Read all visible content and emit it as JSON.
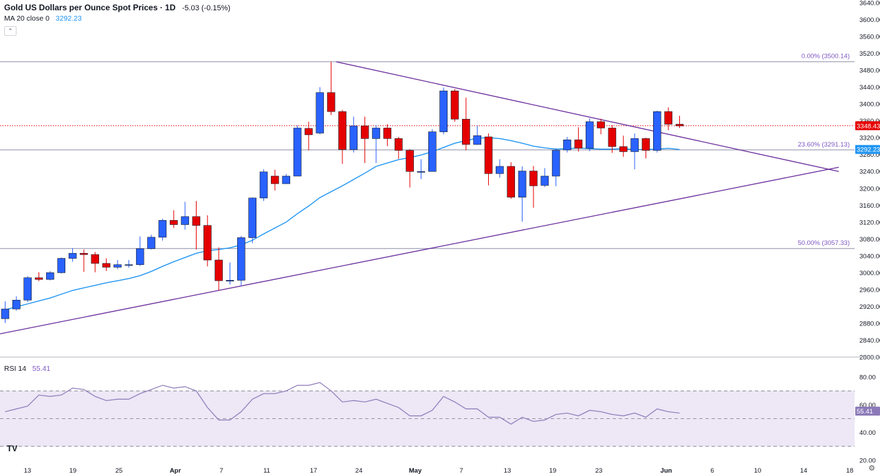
{
  "header": {
    "title": "Gold US Dollars per Ounce Spot Prices · 1D",
    "change": "-5.03 (-0.15%)",
    "ma_label": "MA 20 close 0",
    "ma_value": "3292.23",
    "rsi_label": "RSI 14",
    "rsi_value": "55.41",
    "logo": "TV"
  },
  "colors": {
    "up": "#2962ff",
    "down": "#e50000",
    "ma": "#2196f3",
    "trend": "#6a2c9c",
    "fib": "#7e57c2",
    "rsi": "#8c7ab8",
    "rsi_band": "#ede7f6",
    "price_tag": "#e50000"
  },
  "chart_data": [
    {
      "type": "candlestick",
      "title": "Gold US Dollars per Ounce Spot Prices · 1D",
      "ylim": [
        2800,
        3640
      ],
      "y_ticks": [
        "3640.00",
        "3600.00",
        "3560.00",
        "3520.00",
        "3480.00",
        "3440.00",
        "3400.00",
        "3360.00",
        "3320.00",
        "3280.00",
        "3240.00",
        "3200.00",
        "3160.00",
        "3120.00",
        "3080.00",
        "3040.00",
        "3000.00",
        "2960.00",
        "2920.00",
        "2880.00",
        "2840.00",
        "2800.00"
      ],
      "x_ticks": [
        "13",
        "19",
        "25",
        "Apr",
        "7",
        "11",
        "17",
        "24",
        "May",
        "7",
        "13",
        "19",
        "23",
        "Jun",
        "6",
        "10",
        "14",
        "18"
      ],
      "candles": [
        {
          "d": "Mar 12",
          "o": 2891,
          "h": 2932,
          "l": 2881,
          "c": 2914
        },
        {
          "d": "Mar 13",
          "o": 2914,
          "h": 2944,
          "l": 2910,
          "c": 2935
        },
        {
          "d": "Mar 14",
          "o": 2935,
          "h": 2992,
          "l": 2930,
          "c": 2988
        },
        {
          "d": "Mar 17",
          "o": 2988,
          "h": 3001,
          "l": 2980,
          "c": 2984
        },
        {
          "d": "Mar 18",
          "o": 2984,
          "h": 3004,
          "l": 2982,
          "c": 3000
        },
        {
          "d": "Mar 19",
          "o": 3000,
          "h": 3036,
          "l": 2998,
          "c": 3034
        },
        {
          "d": "Mar 20",
          "o": 3034,
          "h": 3058,
          "l": 3026,
          "c": 3046
        },
        {
          "d": "Mar 21",
          "o": 3046,
          "h": 3055,
          "l": 3002,
          "c": 3043
        },
        {
          "d": "Mar 24",
          "o": 3043,
          "h": 3049,
          "l": 3001,
          "c": 3022
        },
        {
          "d": "Mar 25",
          "o": 3022,
          "h": 3034,
          "l": 3004,
          "c": 3013
        },
        {
          "d": "Mar 26",
          "o": 3013,
          "h": 3030,
          "l": 3008,
          "c": 3019
        },
        {
          "d": "Mar 27",
          "o": 3019,
          "h": 3030,
          "l": 3012,
          "c": 3019
        },
        {
          "d": "Mar 28",
          "o": 3019,
          "h": 3086,
          "l": 3016,
          "c": 3057
        },
        {
          "d": "Mar 31",
          "o": 3057,
          "h": 3090,
          "l": 3055,
          "c": 3084
        },
        {
          "d": "Apr 1",
          "o": 3084,
          "h": 3128,
          "l": 3076,
          "c": 3124
        },
        {
          "d": "Apr 2",
          "o": 3124,
          "h": 3148,
          "l": 3106,
          "c": 3114
        },
        {
          "d": "Apr 3",
          "o": 3114,
          "h": 3168,
          "l": 3102,
          "c": 3133
        },
        {
          "d": "Apr 4",
          "o": 3133,
          "h": 3170,
          "l": 3055,
          "c": 3112
        },
        {
          "d": "Apr 7",
          "o": 3112,
          "h": 3136,
          "l": 3015,
          "c": 3030
        },
        {
          "d": "Apr 8",
          "o": 3030,
          "h": 3060,
          "l": 2958,
          "c": 2981
        },
        {
          "d": "Apr 9",
          "o": 2982,
          "h": 3024,
          "l": 2972,
          "c": 2982
        },
        {
          "d": "Apr 10",
          "o": 2982,
          "h": 3087,
          "l": 2970,
          "c": 3083
        },
        {
          "d": "Apr 11",
          "o": 3083,
          "h": 3179,
          "l": 3070,
          "c": 3177
        },
        {
          "d": "Apr 14",
          "o": 3177,
          "h": 3245,
          "l": 3170,
          "c": 3239
        },
        {
          "d": "Apr 15",
          "o": 3229,
          "h": 3244,
          "l": 3195,
          "c": 3211
        },
        {
          "d": "Apr 16",
          "o": 3211,
          "h": 3234,
          "l": 3211,
          "c": 3229
        },
        {
          "d": "Apr 17",
          "o": 3229,
          "h": 3349,
          "l": 3229,
          "c": 3343
        },
        {
          "d": "Apr 18",
          "o": 3342,
          "h": 3358,
          "l": 3290,
          "c": 3327
        },
        {
          "d": "Apr 21",
          "o": 3331,
          "h": 3440,
          "l": 3328,
          "c": 3427
        },
        {
          "d": "Apr 22",
          "o": 3427,
          "h": 3500,
          "l": 3374,
          "c": 3382
        },
        {
          "d": "Apr 23",
          "o": 3382,
          "h": 3386,
          "l": 3258,
          "c": 3292
        },
        {
          "d": "Apr 24",
          "o": 3292,
          "h": 3370,
          "l": 3285,
          "c": 3348
        },
        {
          "d": "Apr 25",
          "o": 3348,
          "h": 3370,
          "l": 3260,
          "c": 3318
        },
        {
          "d": "Apr 28",
          "o": 3318,
          "h": 3350,
          "l": 3260,
          "c": 3343
        },
        {
          "d": "Apr 29",
          "o": 3343,
          "h": 3352,
          "l": 3300,
          "c": 3318
        },
        {
          "d": "Apr 30",
          "o": 3318,
          "h": 3322,
          "l": 3270,
          "c": 3290
        },
        {
          "d": "May 1",
          "o": 3290,
          "h": 3293,
          "l": 3202,
          "c": 3240
        },
        {
          "d": "May 2",
          "o": 3240,
          "h": 3269,
          "l": 3222,
          "c": 3240
        },
        {
          "d": "May 5",
          "o": 3240,
          "h": 3340,
          "l": 3240,
          "c": 3334
        },
        {
          "d": "May 6",
          "o": 3334,
          "h": 3439,
          "l": 3328,
          "c": 3431
        },
        {
          "d": "May 7",
          "o": 3431,
          "h": 3435,
          "l": 3358,
          "c": 3364
        },
        {
          "d": "May 8",
          "o": 3364,
          "h": 3415,
          "l": 3290,
          "c": 3304
        },
        {
          "d": "May 9",
          "o": 3304,
          "h": 3349,
          "l": 3303,
          "c": 3325
        },
        {
          "d": "May 12",
          "o": 3322,
          "h": 3330,
          "l": 3207,
          "c": 3235
        },
        {
          "d": "May 13",
          "o": 3235,
          "h": 3269,
          "l": 3225,
          "c": 3252
        },
        {
          "d": "May 14",
          "o": 3252,
          "h": 3262,
          "l": 3175,
          "c": 3179
        },
        {
          "d": "May 15",
          "o": 3179,
          "h": 3252,
          "l": 3121,
          "c": 3241
        },
        {
          "d": "May 16",
          "o": 3241,
          "h": 3253,
          "l": 3154,
          "c": 3206
        },
        {
          "d": "May 19",
          "o": 3207,
          "h": 3248,
          "l": 3203,
          "c": 3229
        },
        {
          "d": "May 20",
          "o": 3229,
          "h": 3295,
          "l": 3205,
          "c": 3290
        },
        {
          "d": "May 21",
          "o": 3291,
          "h": 3322,
          "l": 3285,
          "c": 3315
        },
        {
          "d": "May 22",
          "o": 3315,
          "h": 3345,
          "l": 3287,
          "c": 3295
        },
        {
          "d": "May 23",
          "o": 3295,
          "h": 3366,
          "l": 3288,
          "c": 3358
        },
        {
          "d": "May 26",
          "o": 3358,
          "h": 3365,
          "l": 3328,
          "c": 3343
        },
        {
          "d": "May 27",
          "o": 3343,
          "h": 3350,
          "l": 3284,
          "c": 3299
        },
        {
          "d": "May 28",
          "o": 3299,
          "h": 3325,
          "l": 3275,
          "c": 3287
        },
        {
          "d": "May 29",
          "o": 3287,
          "h": 3330,
          "l": 3245,
          "c": 3318
        },
        {
          "d": "May 30",
          "o": 3318,
          "h": 3320,
          "l": 3271,
          "c": 3290
        },
        {
          "d": "Jun 2",
          "o": 3290,
          "h": 3384,
          "l": 3285,
          "c": 3382
        },
        {
          "d": "Jun 3",
          "o": 3382,
          "h": 3392,
          "l": 3338,
          "c": 3352
        },
        {
          "d": "Jun 4",
          "o": 3352,
          "h": 3372,
          "l": 3343,
          "c": 3348
        }
      ],
      "ma20": [
        2912,
        2919,
        2926,
        2933,
        2940,
        2949,
        2958,
        2964,
        2970,
        2976,
        2981,
        2986,
        2993,
        3003,
        3015,
        3026,
        3036,
        3046,
        3052,
        3055,
        3059,
        3066,
        3077,
        3092,
        3106,
        3120,
        3140,
        3158,
        3178,
        3192,
        3206,
        3221,
        3236,
        3252,
        3260,
        3268,
        3273,
        3279,
        3287,
        3297,
        3307,
        3313,
        3319,
        3320,
        3318,
        3313,
        3307,
        3300,
        3296,
        3293,
        3294,
        3296,
        3294,
        3293,
        3293,
        3294,
        3292,
        3292,
        3293,
        3295,
        3292
      ],
      "annotations": {
        "last_price": "3348.43",
        "ma_last": "3292.23",
        "fib_0": "0.00% (3500.14)",
        "fib_236": "23.60% (3291.13)",
        "fib_50": "50.00% (3057.33)"
      }
    },
    {
      "type": "line",
      "title": "RSI 14",
      "ylim": [
        20,
        80
      ],
      "y_ticks": [
        "80.00",
        "60.00",
        "40.00",
        "20.00"
      ],
      "band": [
        30,
        70
      ],
      "mid": 50,
      "last": "55.41",
      "values": [
        55,
        57,
        59,
        67,
        66,
        67,
        72,
        71,
        66,
        63,
        64,
        64,
        68,
        71,
        74,
        72,
        73,
        70,
        58,
        49,
        49,
        55,
        64,
        68,
        68,
        70,
        74,
        74,
        76,
        70,
        62,
        63,
        62,
        64,
        61,
        58,
        52,
        52,
        56,
        66,
        62,
        57,
        57,
        51,
        51,
        46,
        51,
        48,
        49,
        53,
        54,
        52,
        56,
        55,
        53,
        52,
        54,
        51,
        57,
        55,
        54
      ]
    }
  ]
}
